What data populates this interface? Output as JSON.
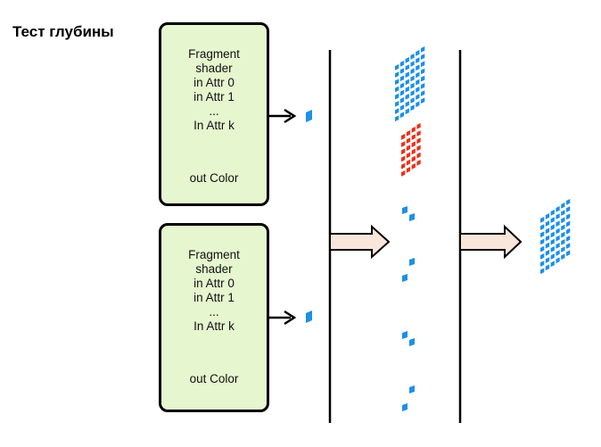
{
  "title": "Тест глубины",
  "shaders": [
    {
      "lines": [
        "Fragment",
        "shader",
        "in Attr 0",
        "in Attr 1",
        "...",
        "In Attr k"
      ],
      "out": "out Color"
    },
    {
      "lines": [
        "Fragment",
        "shader",
        "in Attr 0",
        "in Attr 1",
        "...",
        "In Attr k"
      ],
      "out": "out Color"
    }
  ],
  "colors": {
    "shader_fill": "#e6f6cf",
    "fragment_blue": "#1e8fe8",
    "fragment_red": "#e8321a",
    "arrow_fill": "#f8e6da"
  }
}
